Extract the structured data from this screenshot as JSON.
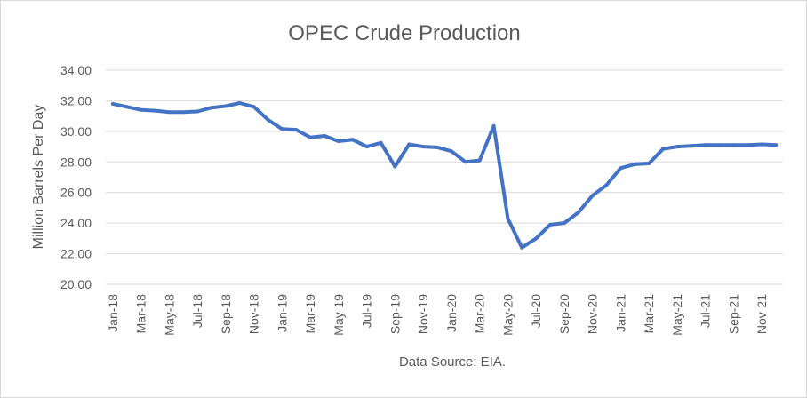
{
  "chart_data": {
    "type": "line",
    "title": "OPEC Crude Production",
    "ylabel": "Million Barrels Per Day",
    "source_note": "Data Source: EIA.",
    "ylim": [
      20,
      34
    ],
    "y_ticks": [
      "20.00",
      "22.00",
      "24.00",
      "26.00",
      "28.00",
      "30.00",
      "32.00",
      "34.00"
    ],
    "y_tick_values": [
      20,
      22,
      24,
      26,
      28,
      30,
      32,
      34
    ],
    "x": [
      "Jan-18",
      "Feb-18",
      "Mar-18",
      "Apr-18",
      "May-18",
      "Jun-18",
      "Jul-18",
      "Aug-18",
      "Sep-18",
      "Oct-18",
      "Nov-18",
      "Dec-18",
      "Jan-19",
      "Feb-19",
      "Mar-19",
      "Apr-19",
      "May-19",
      "Jun-19",
      "Jul-19",
      "Aug-19",
      "Sep-19",
      "Oct-19",
      "Nov-19",
      "Dec-19",
      "Jan-20",
      "Feb-20",
      "Mar-20",
      "Apr-20",
      "May-20",
      "Jun-20",
      "Jul-20",
      "Aug-20",
      "Sep-20",
      "Oct-20",
      "Nov-20",
      "Dec-20",
      "Jan-21",
      "Feb-21",
      "Mar-21",
      "Apr-21",
      "May-21",
      "Jun-21",
      "Jul-21",
      "Aug-21",
      "Sep-21",
      "Oct-21",
      "Nov-21",
      "Dec-21"
    ],
    "x_tick_labels": [
      "Jan-18",
      "Mar-18",
      "May-18",
      "Jul-18",
      "Sep-18",
      "Nov-18",
      "Jan-19",
      "Mar-19",
      "May-19",
      "Jul-19",
      "Sep-19",
      "Nov-19",
      "Jan-20",
      "Mar-20",
      "May-20",
      "Jul-20",
      "Sep-20",
      "Nov-20",
      "Jan-21",
      "Mar-21",
      "May-21",
      "Jul-21",
      "Sep-21",
      "Nov-21"
    ],
    "series": [
      {
        "color": "#4472c4",
        "values": [
          31.8,
          31.6,
          31.4,
          31.35,
          31.25,
          31.25,
          31.3,
          31.55,
          31.65,
          31.85,
          31.6,
          30.75,
          30.15,
          30.1,
          29.6,
          29.7,
          29.35,
          29.45,
          29.0,
          29.25,
          27.7,
          29.15,
          29.0,
          28.95,
          28.7,
          28.0,
          28.1,
          30.35,
          24.3,
          22.4,
          23.0,
          23.9,
          24.0,
          24.7,
          25.8,
          26.5,
          27.6,
          27.85,
          27.9,
          28.85,
          29.0,
          29.05,
          29.1,
          29.1,
          29.1,
          29.1,
          29.15,
          29.1
        ]
      }
    ],
    "grid": true,
    "legend": "none"
  }
}
